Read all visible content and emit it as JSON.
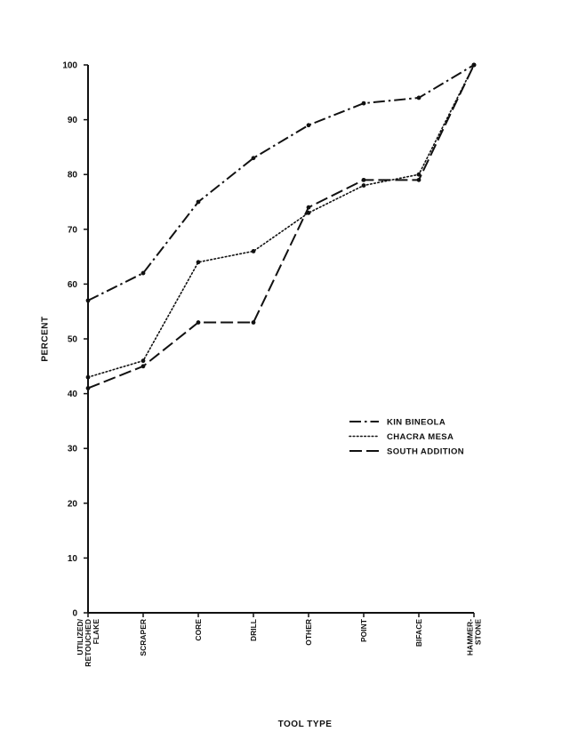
{
  "chart_data": {
    "type": "line",
    "title": "",
    "xlabel": "TOOL TYPE",
    "ylabel": "PERCENT",
    "ylim": [
      0,
      100
    ],
    "yticks": [
      0,
      10,
      20,
      30,
      40,
      50,
      60,
      70,
      80,
      90,
      100
    ],
    "categories": [
      [
        "UTILIZED/",
        "RETOUCHED",
        "FLAKE"
      ],
      [
        "SCRAPER"
      ],
      [
        "CORE"
      ],
      [
        "DRILL"
      ],
      [
        "OTHER"
      ],
      [
        "POINT"
      ],
      [
        "BIFACE"
      ],
      [
        "HAMMER-",
        "STONE"
      ]
    ],
    "grid": false,
    "legend_position": "right-middle",
    "series": [
      {
        "name": "KIN BINEOLA",
        "style": "dash-dot",
        "values": [
          57,
          62,
          75,
          83,
          89,
          93,
          94,
          100
        ]
      },
      {
        "name": "CHACRA MESA",
        "style": "dotted",
        "values": [
          43,
          46,
          64,
          66,
          73,
          78,
          80,
          100
        ]
      },
      {
        "name": "SOUTH ADDITION",
        "style": "dashed",
        "values": [
          41,
          45,
          53,
          53,
          74,
          79,
          79,
          100
        ]
      }
    ],
    "colors": {
      "line": "#111111",
      "background": "#ffffff"
    }
  }
}
